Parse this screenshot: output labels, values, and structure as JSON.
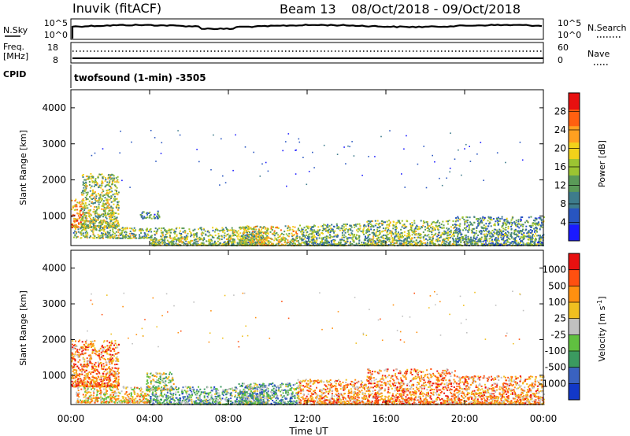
{
  "header": {
    "station": "Inuvik (fitACF)",
    "beam": "Beam 13",
    "date_range": "08/Oct/2018 - 09/Oct/2018",
    "cpid_label": "CPID",
    "cpid_text": "twofsound (1-min) -3505"
  },
  "noise_panel": {
    "left_label": "N.Sky",
    "left_ticks": [
      "10^5",
      "10^0"
    ],
    "right_label": "N.Search",
    "right_ticks": [
      "10^5",
      "10^0"
    ],
    "trace_color": "#000000"
  },
  "freq_panel": {
    "left_label_line1": "Freq.",
    "left_label_line2": "[MHz]",
    "left_ticks": [
      "18",
      "8"
    ],
    "right_label": "Nave",
    "right_ticks": [
      "60",
      "0"
    ]
  },
  "chart_data": [
    {
      "type": "heatmap",
      "name": "power",
      "xlabel": "",
      "ylabel": "Slant Range [km]",
      "x_ticks": [
        "00:00",
        "04:00",
        "08:00",
        "12:00",
        "16:00",
        "20:00",
        "00:00"
      ],
      "x_range_hours": [
        0,
        24
      ],
      "y_ticks": [
        1000,
        2000,
        3000,
        4000
      ],
      "ylim": [
        180,
        4500
      ],
      "colorbar": {
        "label": "Power [dB]",
        "ticks": [
          "4",
          "8",
          "12",
          "16",
          "20",
          "24",
          "28"
        ],
        "range": [
          0,
          30
        ],
        "colors": [
          "#1a1aff",
          "#2855c0",
          "#3e7c8c",
          "#5a9a58",
          "#9cc432",
          "#f2d21a",
          "#ffa020",
          "#ff6010",
          "#e81010"
        ]
      },
      "scatter_clusters": [
        {
          "t0": 0.0,
          "t1": 0.6,
          "r0": 700,
          "r1": 1500,
          "level": 0.75
        },
        {
          "t0": 0.5,
          "t1": 2.4,
          "r0": 700,
          "r1": 2200,
          "level": 0.5
        },
        {
          "t0": 0.1,
          "t1": 4.0,
          "r0": 400,
          "r1": 700,
          "level": 0.45
        },
        {
          "t0": 3.5,
          "t1": 4.5,
          "r0": 950,
          "r1": 1150,
          "level": 0.3
        },
        {
          "t0": 4.0,
          "t1": 10.0,
          "r0": 200,
          "r1": 700,
          "level": 0.45
        },
        {
          "t0": 8.5,
          "t1": 11.5,
          "r0": 200,
          "r1": 750,
          "level": 0.55
        },
        {
          "t0": 11.5,
          "t1": 15.0,
          "r0": 200,
          "r1": 800,
          "level": 0.4
        },
        {
          "t0": 15.0,
          "t1": 19.5,
          "r0": 200,
          "r1": 900,
          "level": 0.45
        },
        {
          "t0": 19.5,
          "t1": 24.0,
          "r0": 200,
          "r1": 1000,
          "level": 0.35
        }
      ]
    },
    {
      "type": "heatmap",
      "name": "velocity",
      "xlabel": "Time UT",
      "ylabel": "Slant Range [km]",
      "x_ticks": [
        "00:00",
        "04:00",
        "08:00",
        "12:00",
        "16:00",
        "20:00",
        "00:00"
      ],
      "x_range_hours": [
        0,
        24
      ],
      "y_ticks": [
        1000,
        2000,
        3000,
        4000
      ],
      "ylim": [
        180,
        4500
      ],
      "colorbar": {
        "label": "Velocity [m s",
        "label_sup": "-1",
        "label_end": "]",
        "ticks": [
          "1000",
          "500",
          "100",
          "25",
          "-25",
          "-100",
          "-500",
          "-1000"
        ],
        "colors": [
          "#1238c8",
          "#3a62c0",
          "#3b9a60",
          "#60c040",
          "#c0c0c0",
          "#f0c020",
          "#ff9010",
          "#ff5010",
          "#e81010"
        ]
      },
      "scatter_clusters": [
        {
          "t0": 0.0,
          "t1": 2.4,
          "r0": 700,
          "r1": 2000,
          "level": 0.75
        },
        {
          "t0": 0.2,
          "t1": 4.0,
          "r0": 250,
          "r1": 700,
          "level": 0.6
        },
        {
          "t0": 3.8,
          "t1": 5.2,
          "r0": 600,
          "r1": 1100,
          "level": 0.45
        },
        {
          "t0": 4.0,
          "t1": 10.0,
          "r0": 200,
          "r1": 700,
          "level": 0.35
        },
        {
          "t0": 8.5,
          "t1": 11.5,
          "r0": 200,
          "r1": 800,
          "level": 0.35
        },
        {
          "t0": 11.5,
          "t1": 15.0,
          "r0": 200,
          "r1": 900,
          "level": 0.7
        },
        {
          "t0": 15.0,
          "t1": 19.5,
          "r0": 200,
          "r1": 1200,
          "level": 0.72
        },
        {
          "t0": 19.5,
          "t1": 24.0,
          "r0": 200,
          "r1": 1000,
          "level": 0.7
        }
      ]
    }
  ]
}
